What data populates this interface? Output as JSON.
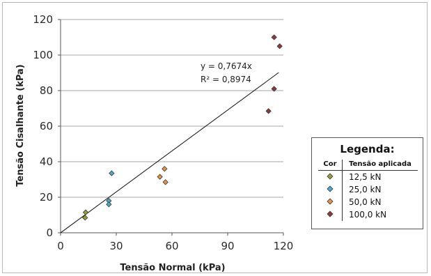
{
  "chart_data": {
    "type": "scatter",
    "xlabel": "Tensão Normal (kPa)",
    "ylabel": "Tensão Cisalhante (kPa)",
    "xlim": [
      0,
      120
    ],
    "ylim": [
      0,
      120
    ],
    "x_ticks": [
      "0",
      "30",
      "60",
      "90",
      "120"
    ],
    "y_ticks": [
      "0",
      "20",
      "40",
      "60",
      "80",
      "100",
      "120"
    ],
    "grid": "horizontal",
    "legend_placement": "right",
    "trendline": {
      "slope": 0.7674,
      "equation": "y = 0,7674x",
      "r2": "R² = 0,8974"
    },
    "legend": {
      "title": "Legenda:",
      "col_color": "Cor",
      "col_load": "Tensão aplicada"
    },
    "series": [
      {
        "name": "12,5 kN",
        "color": "#9a9a3c",
        "points": [
          [
            13.5,
            11.5
          ],
          [
            13.2,
            8.5
          ]
        ]
      },
      {
        "name": "25,0 kN",
        "color": "#4fa8c8",
        "points": [
          [
            27.5,
            33.5
          ],
          [
            26.0,
            18.0
          ],
          [
            26.0,
            16.0
          ]
        ]
      },
      {
        "name": "50,0 kN",
        "color": "#e3924a",
        "points": [
          [
            56.0,
            36.0
          ],
          [
            53.5,
            31.5
          ],
          [
            56.5,
            28.5
          ]
        ]
      },
      {
        "name": "100,0 kN",
        "color": "#8b3a3a",
        "points": [
          [
            115.0,
            110.0
          ],
          [
            118.0,
            105.0
          ],
          [
            115.0,
            81.0
          ],
          [
            112.0,
            68.5
          ]
        ]
      }
    ]
  }
}
